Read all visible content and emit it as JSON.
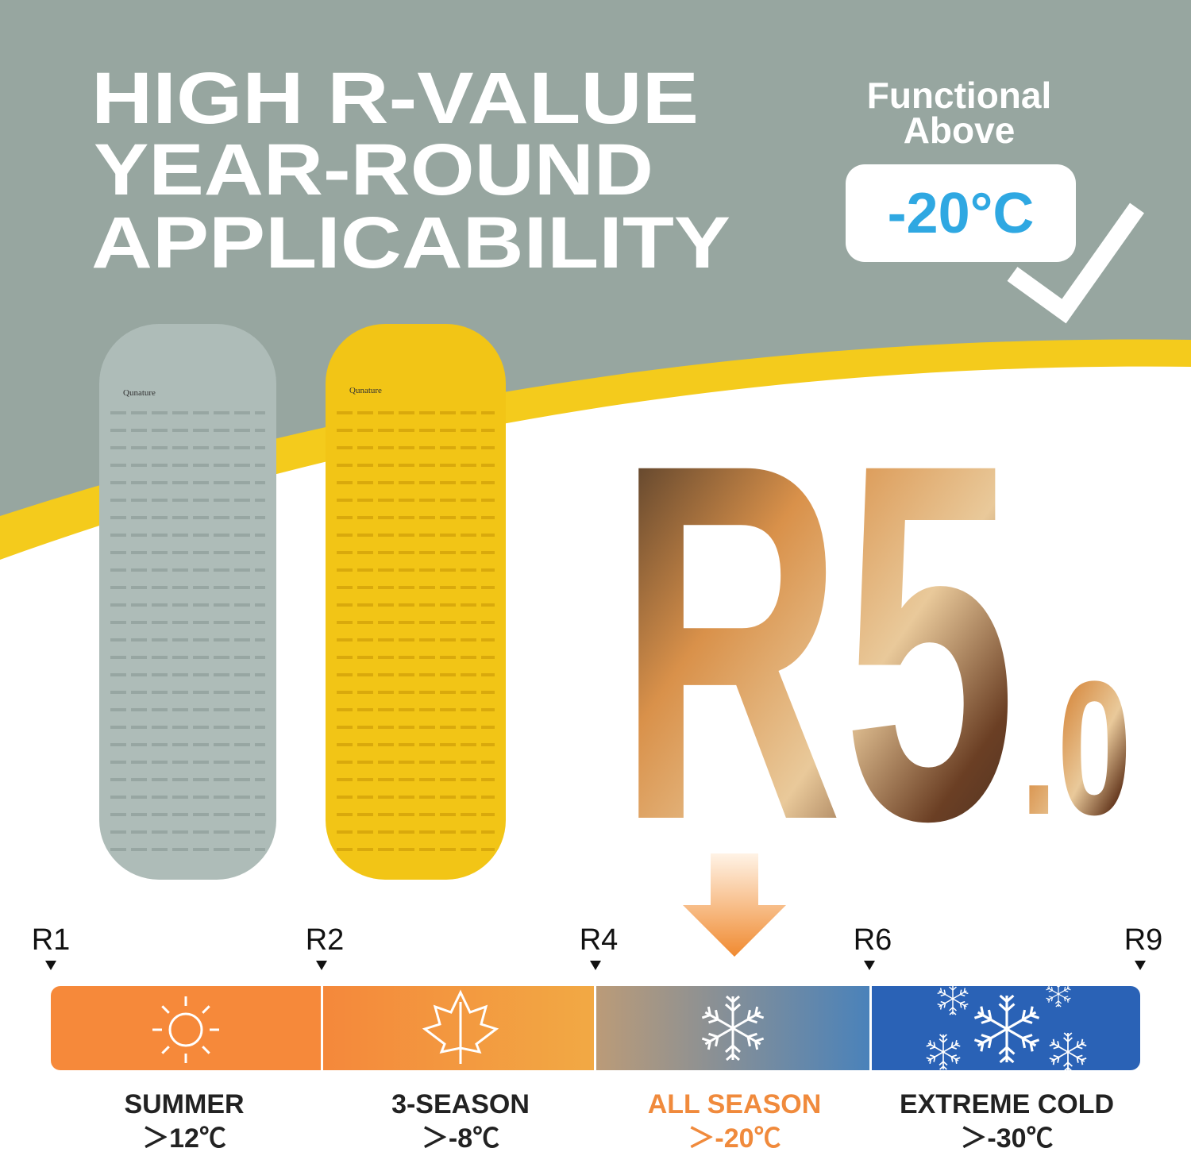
{
  "header": {
    "title_lines": [
      "HIGH R-VALUE",
      "YEAR-ROUND",
      "APPLICABILITY"
    ]
  },
  "badge": {
    "label_lines": [
      "Functional",
      "Above"
    ],
    "temperature": "-20°C"
  },
  "products": [
    {
      "brand": "Qunature"
    },
    {
      "brand": "Qunature"
    }
  ],
  "rating": {
    "value": "R5",
    "decimal": ".0"
  },
  "scale": {
    "markers": [
      "R1",
      "R2",
      "R4",
      "R6",
      "R9"
    ],
    "segments": [
      {
        "name": "SUMMER",
        "temperature": "＞12℃"
      },
      {
        "name": "3-SEASON",
        "temperature": "＞-8℃"
      },
      {
        "name": "ALL SEASON",
        "temperature": "＞-20℃"
      },
      {
        "name": "EXTREME COLD",
        "temperature": "＞-30℃"
      }
    ]
  }
}
